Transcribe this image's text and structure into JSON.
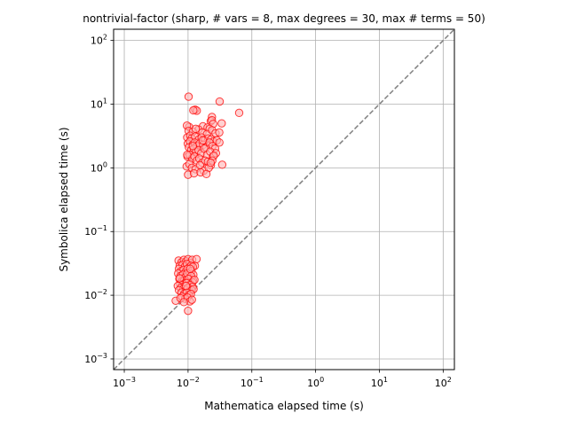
{
  "chart_data": {
    "type": "scatter",
    "title": "nontrivial-factor (sharp, # vars = 8, max degrees = 30, max # terms = 50)",
    "xlabel": "Mathematica elapsed time (s)",
    "ylabel": "Symbolica elapsed time (s)",
    "xscale": "log",
    "yscale": "log",
    "xlim": [
      0.00068,
      150
    ],
    "ylim": [
      0.00068,
      150
    ],
    "grid": true,
    "xticks": [
      0.001,
      0.01,
      0.1,
      1,
      10,
      100
    ],
    "yticks": [
      0.001,
      0.01,
      0.1,
      1,
      10,
      100
    ],
    "xtick_labels": [
      {
        "base": "10",
        "exp": "−3"
      },
      {
        "base": "10",
        "exp": "−2"
      },
      {
        "base": "10",
        "exp": "−1"
      },
      {
        "base": "10",
        "exp": "0"
      },
      {
        "base": "10",
        "exp": "1"
      },
      {
        "base": "10",
        "exp": "2"
      }
    ],
    "ytick_labels": [
      {
        "base": "10",
        "exp": "−3"
      },
      {
        "base": "10",
        "exp": "−2"
      },
      {
        "base": "10",
        "exp": "−1"
      },
      {
        "base": "10",
        "exp": "0"
      },
      {
        "base": "10",
        "exp": "1"
      },
      {
        "base": "10",
        "exp": "2"
      }
    ],
    "reference_line": {
      "type": "y=x",
      "color": "#808080",
      "style": "dashed"
    },
    "marker_edge_color": "#ff0000",
    "marker_face_color": "#ffb3b3",
    "series": [
      {
        "x": [
          0.0102,
          0.0129,
          0.0137,
          0.0121,
          0.0104,
          0.0096,
          0.0171,
          0.0237,
          0.0313,
          0.0633,
          0.0227,
          0.0236,
          0.0202,
          0.0248,
          0.0337,
          0.0218,
          0.0146,
          0.0102,
          0.0119,
          0.0132,
          0.0168,
          0.0198,
          0.0238,
          0.027,
          0.0309,
          0.0097,
          0.0108,
          0.0114,
          0.0129,
          0.0148,
          0.0163,
          0.0181,
          0.0207,
          0.023,
          0.0251,
          0.0283,
          0.031,
          0.0099,
          0.0107,
          0.0118,
          0.0127,
          0.0138,
          0.0152,
          0.0172,
          0.0193,
          0.0216,
          0.0241,
          0.0265,
          0.0103,
          0.0112,
          0.0123,
          0.0134,
          0.0146,
          0.0161,
          0.0179,
          0.0199,
          0.0222,
          0.0246,
          0.0274,
          0.0098,
          0.0106,
          0.0116,
          0.0126,
          0.0137,
          0.015,
          0.0166,
          0.0185,
          0.0205,
          0.0228,
          0.0253,
          0.0095,
          0.0105,
          0.0115,
          0.0131,
          0.0154,
          0.0176,
          0.0211,
          0.024,
          0.01,
          0.0124,
          0.0157,
          0.0194,
          0.0226,
          0.0343,
          0.0097,
          0.0119,
          0.017
        ],
        "y": [
          13.1,
          8.2,
          7.9,
          8.0,
          4.4,
          4.6,
          4.5,
          6.3,
          11.0,
          7.3,
          5.4,
          5.6,
          4.3,
          4.9,
          5.0,
          4.1,
          4.0,
          3.8,
          3.7,
          4.1,
          3.6,
          3.4,
          3.9,
          3.5,
          3.6,
          3.0,
          3.2,
          2.9,
          3.1,
          2.8,
          3.0,
          2.7,
          2.9,
          2.8,
          2.6,
          2.7,
          2.5,
          2.4,
          2.6,
          2.3,
          2.5,
          2.2,
          2.4,
          2.3,
          2.1,
          2.5,
          2.2,
          2.0,
          2.1,
          1.9,
          2.0,
          1.8,
          1.9,
          1.7,
          2.0,
          1.6,
          1.8,
          1.5,
          1.7,
          1.5,
          1.6,
          1.4,
          1.5,
          1.3,
          1.4,
          1.2,
          1.3,
          1.25,
          1.1,
          1.55,
          1.05,
          1.15,
          1.0,
          0.95,
          1.1,
          0.9,
          1.0,
          1.3,
          0.78,
          0.82,
          0.85,
          0.8,
          1.2,
          1.12,
          1.6,
          2.2,
          2.7
        ]
      },
      {
        "x": [
          0.0071,
          0.0079,
          0.0086,
          0.0093,
          0.01,
          0.0108,
          0.0116,
          0.0128,
          0.0136,
          0.0074,
          0.0082,
          0.0089,
          0.0096,
          0.0103,
          0.0111,
          0.0119,
          0.0072,
          0.0078,
          0.0085,
          0.0091,
          0.0098,
          0.0105,
          0.0113,
          0.0121,
          0.007,
          0.0076,
          0.0083,
          0.009,
          0.0097,
          0.0104,
          0.0112,
          0.012,
          0.0073,
          0.008,
          0.0087,
          0.0094,
          0.0101,
          0.0109,
          0.0117,
          0.0075,
          0.0081,
          0.0088,
          0.0095,
          0.0102,
          0.011,
          0.0118,
          0.0069,
          0.0077,
          0.0084,
          0.0092,
          0.0099,
          0.0106,
          0.0114,
          0.0122,
          0.0072,
          0.0079,
          0.0087,
          0.0095,
          0.0103,
          0.0111,
          0.0064,
          0.0081,
          0.009,
          0.0098,
          0.0107,
          0.0115,
          0.0076,
          0.0086,
          0.01,
          0.0126,
          0.0074,
          0.0093,
          0.0108
        ],
        "y": [
          0.035,
          0.033,
          0.036,
          0.034,
          0.037,
          0.032,
          0.036,
          0.029,
          0.037,
          0.029,
          0.03,
          0.028,
          0.031,
          0.027,
          0.029,
          0.028,
          0.026,
          0.024,
          0.025,
          0.023,
          0.026,
          0.022,
          0.024,
          0.021,
          0.022,
          0.02,
          0.021,
          0.019,
          0.022,
          0.018,
          0.02,
          0.017,
          0.018,
          0.0165,
          0.017,
          0.016,
          0.018,
          0.015,
          0.016,
          0.015,
          0.0145,
          0.014,
          0.0155,
          0.013,
          0.0145,
          0.0135,
          0.014,
          0.013,
          0.0125,
          0.012,
          0.013,
          0.0115,
          0.012,
          0.0125,
          0.012,
          0.011,
          0.0105,
          0.011,
          0.01,
          0.0105,
          0.0082,
          0.0095,
          0.0088,
          0.0092,
          0.008,
          0.0085,
          0.009,
          0.0078,
          0.0057,
          0.0175,
          0.0185,
          0.014,
          0.026
        ]
      }
    ]
  }
}
